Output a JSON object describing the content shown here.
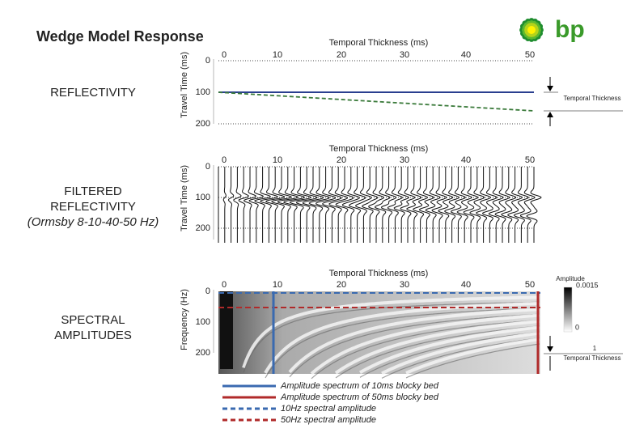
{
  "header": {
    "title": "Wedge Model Response",
    "logo": "bp"
  },
  "panels": [
    {
      "label": [
        "REFLECTIVITY"
      ],
      "y_axis_title": "Travel Time (ms)",
      "y_ticks": [
        "0",
        "100",
        "200"
      ],
      "x_axis_title": "Temporal Thickness (ms)",
      "x_ticks": [
        "0",
        "10",
        "20",
        "30",
        "40",
        "50"
      ],
      "annotation": "Temporal Thickness"
    },
    {
      "label": [
        "FILTERED",
        "REFLECTIVITY",
        "(Ormsby 8-10-40-50 Hz)"
      ],
      "y_axis_title": "Travel Time (ms)",
      "y_ticks": [
        "0",
        "100",
        "200"
      ],
      "x_axis_title": "Temporal Thickness (ms)",
      "x_ticks": [
        "0",
        "10",
        "20",
        "30",
        "40",
        "50"
      ]
    },
    {
      "label": [
        "SPECTRAL",
        "AMPLITUDES"
      ],
      "y_axis_title": "Frequency (Hz)",
      "y_ticks": [
        "0",
        "100",
        "200"
      ],
      "x_axis_title": "Temporal Thickness (ms)",
      "x_ticks": [
        "0",
        "10",
        "20",
        "30",
        "40",
        "50"
      ]
    }
  ],
  "colorbar": {
    "title": "Amplitude",
    "max": "0.0015",
    "min": "0"
  },
  "thickness_marker": {
    "value": "1",
    "label": "Temporal Thickness"
  },
  "legend": [
    "Amplitude spectrum of 10ms blocky bed",
    "Amplitude spectrum of 50ms blocky bed",
    "10Hz spectral amplitude",
    "50Hz spectral amplitude"
  ]
}
